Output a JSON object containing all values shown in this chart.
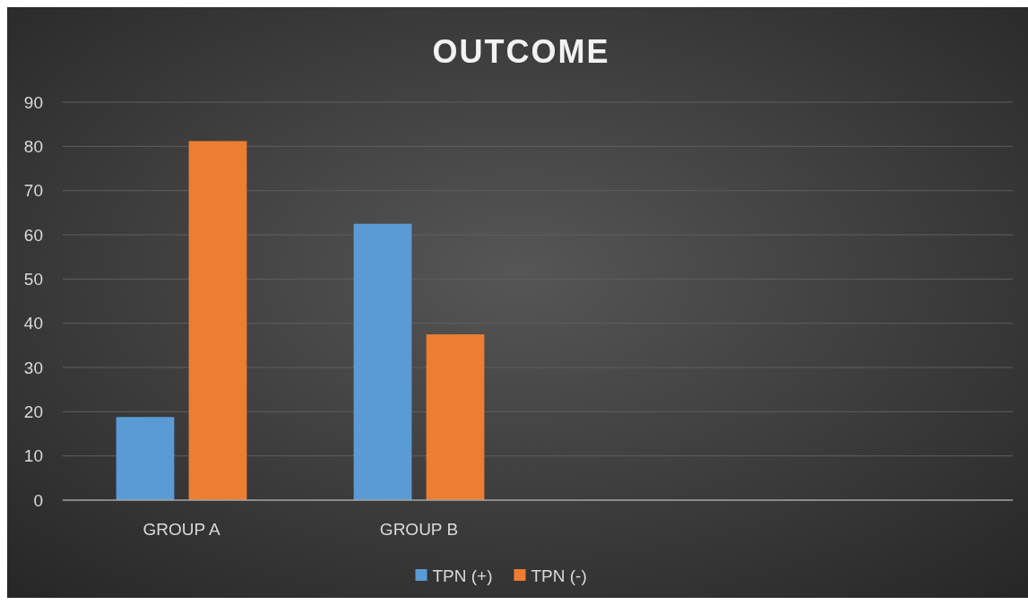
{
  "chart_data": {
    "type": "bar",
    "title": "OUTCOME",
    "categories": [
      "GROUP A",
      "GROUP B",
      null,
      null
    ],
    "series": [
      {
        "name": "TPN (+)",
        "color": "#5b9bd5",
        "values": [
          18.8,
          62.5,
          null,
          null
        ]
      },
      {
        "name": "TPN (-)",
        "color": "#ed7d31",
        "values": [
          81.2,
          37.5,
          null,
          null
        ]
      }
    ],
    "ylim": [
      0,
      90
    ],
    "yticks": [
      0,
      10,
      20,
      30,
      40,
      50,
      60,
      70,
      80,
      90
    ],
    "grid": "y",
    "legend": "bottom"
  }
}
